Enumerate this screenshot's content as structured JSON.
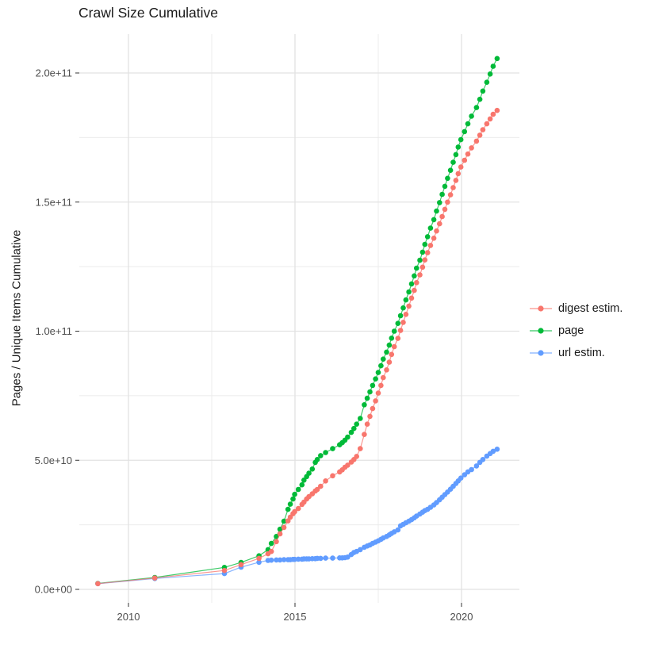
{
  "title": "Crawl Size Cumulative",
  "y_axis_title": "Pages / Unique Items Cumulative",
  "legend": {
    "items": [
      {
        "label": "digest estim.",
        "color": "#F8766D"
      },
      {
        "label": "page",
        "color": "#00BA38"
      },
      {
        "label": "url estim.",
        "color": "#619CFF"
      }
    ]
  },
  "chart_data": {
    "type": "scatter",
    "title": "Crawl Size Cumulative",
    "xlabel": "",
    "ylabel": "Pages / Unique Items Cumulative",
    "legend_position": "right",
    "grid": true,
    "x_unit": "decimal year",
    "y_unit": "values listed in billions (1e9 items)",
    "xlim": [
      2008.5,
      2021.75
    ],
    "ylim_billions": [
      0,
      215
    ],
    "x_ticks": {
      "values": [
        2010,
        2015,
        2020
      ],
      "labels": [
        "2010",
        "2015",
        "2020"
      ],
      "minor": [
        2012.5,
        2017.5
      ]
    },
    "y_ticks": {
      "values_billions": [
        0,
        50,
        100,
        150,
        200
      ],
      "labels": [
        "0.0e+00",
        "5.0e+10",
        "1.0e+11",
        "1.5e+11",
        "2.0e+11"
      ],
      "minor_billions": [
        25,
        75,
        125,
        175
      ]
    },
    "x": [
      2009.08,
      2010.79,
      2012.88,
      2013.38,
      2013.92,
      2014.19,
      2014.29,
      2014.44,
      2014.55,
      2014.67,
      2014.79,
      2014.86,
      2014.94,
      2014.99,
      2015.1,
      2015.21,
      2015.27,
      2015.35,
      2015.42,
      2015.52,
      2015.61,
      2015.67,
      2015.77,
      2015.92,
      2016.13,
      2016.34,
      2016.42,
      2016.5,
      2016.58,
      2016.69,
      2016.77,
      2016.85,
      2016.96,
      2017.08,
      2017.17,
      2017.25,
      2017.33,
      2017.42,
      2017.5,
      2017.58,
      2017.65,
      2017.75,
      2017.83,
      2017.9,
      2017.98,
      2018.09,
      2018.17,
      2018.25,
      2018.33,
      2018.42,
      2018.5,
      2018.58,
      2018.65,
      2018.75,
      2018.83,
      2018.9,
      2018.98,
      2019.07,
      2019.17,
      2019.25,
      2019.34,
      2019.42,
      2019.5,
      2019.58,
      2019.67,
      2019.75,
      2019.83,
      2019.9,
      2019.98,
      2020.09,
      2020.19,
      2020.3,
      2020.45,
      2020.55,
      2020.64,
      2020.76,
      2020.86,
      2020.95,
      2021.07
    ],
    "series": [
      {
        "name": "digest estim.",
        "color": "#F8766D",
        "values_billions": [
          2.2,
          4.4,
          7.3,
          9.6,
          12.0,
          13.8,
          14.7,
          18.5,
          21.5,
          24.0,
          26.5,
          28.0,
          29.3,
          30.1,
          31.3,
          32.9,
          33.8,
          35.0,
          35.9,
          37.0,
          38.1,
          38.7,
          39.9,
          42.0,
          44.0,
          45.5,
          46.3,
          47.3,
          48.1,
          49.3,
          50.3,
          51.5,
          54.5,
          60.0,
          64.0,
          67.0,
          70.0,
          73.0,
          76.0,
          79.0,
          82.0,
          85.0,
          88.0,
          91.0,
          94.0,
          97.2,
          100.3,
          103.4,
          106.5,
          109.7,
          112.8,
          115.8,
          118.8,
          121.8,
          124.8,
          127.6,
          130.4,
          133.2,
          136.0,
          138.8,
          141.6,
          144.4,
          147.2,
          150.0,
          152.8,
          155.6,
          158.4,
          161.0,
          163.6,
          166.2,
          168.6,
          171.0,
          173.6,
          175.9,
          178.0,
          180.3,
          182.2,
          184.0,
          185.5
        ]
      },
      {
        "name": "page",
        "color": "#00BA38",
        "values_billions": [
          2.3,
          4.6,
          8.5,
          10.4,
          13.0,
          15.4,
          17.8,
          20.5,
          23.3,
          26.4,
          31.0,
          33.0,
          35.0,
          36.8,
          38.7,
          40.5,
          42.3,
          43.7,
          45.0,
          46.6,
          49.2,
          50.3,
          51.8,
          53.0,
          54.5,
          56.0,
          56.8,
          57.8,
          59.0,
          60.8,
          62.3,
          64.0,
          66.2,
          71.5,
          74.0,
          76.5,
          79.0,
          81.5,
          84.0,
          86.6,
          89.2,
          91.9,
          94.6,
          97.3,
          100.0,
          103.0,
          106.0,
          109.0,
          112.1,
          115.2,
          118.3,
          121.4,
          124.4,
          127.5,
          130.6,
          133.6,
          136.6,
          139.9,
          143.2,
          146.5,
          149.8,
          153.0,
          156.1,
          159.2,
          162.3,
          165.4,
          168.4,
          171.3,
          174.2,
          177.3,
          180.3,
          183.3,
          186.6,
          189.8,
          193.0,
          196.4,
          199.6,
          202.6,
          205.6
        ]
      },
      {
        "name": "url estim.",
        "color": "#619CFF",
        "values_billions": [
          2.2,
          4.2,
          6.1,
          8.6,
          10.5,
          11.2,
          11.3,
          11.4,
          11.4,
          11.5,
          11.5,
          11.5,
          11.6,
          11.6,
          11.7,
          11.7,
          11.8,
          11.8,
          11.8,
          11.9,
          11.9,
          12.0,
          12.0,
          12.1,
          12.1,
          12.2,
          12.2,
          12.3,
          12.5,
          13.5,
          14.3,
          14.7,
          15.4,
          16.3,
          16.8,
          17.2,
          17.8,
          18.3,
          18.8,
          19.4,
          19.9,
          20.5,
          21.1,
          21.7,
          22.3,
          23.0,
          24.6,
          25.2,
          25.8,
          26.4,
          27.0,
          27.7,
          28.4,
          29.2,
          29.9,
          30.5,
          31.0,
          31.8,
          32.7,
          33.6,
          34.7,
          35.7,
          36.7,
          37.7,
          38.8,
          39.9,
          41.0,
          42.0,
          43.1,
          44.4,
          45.5,
          46.4,
          47.8,
          49.2,
          50.3,
          51.6,
          52.6,
          53.5,
          54.3
        ]
      }
    ]
  }
}
